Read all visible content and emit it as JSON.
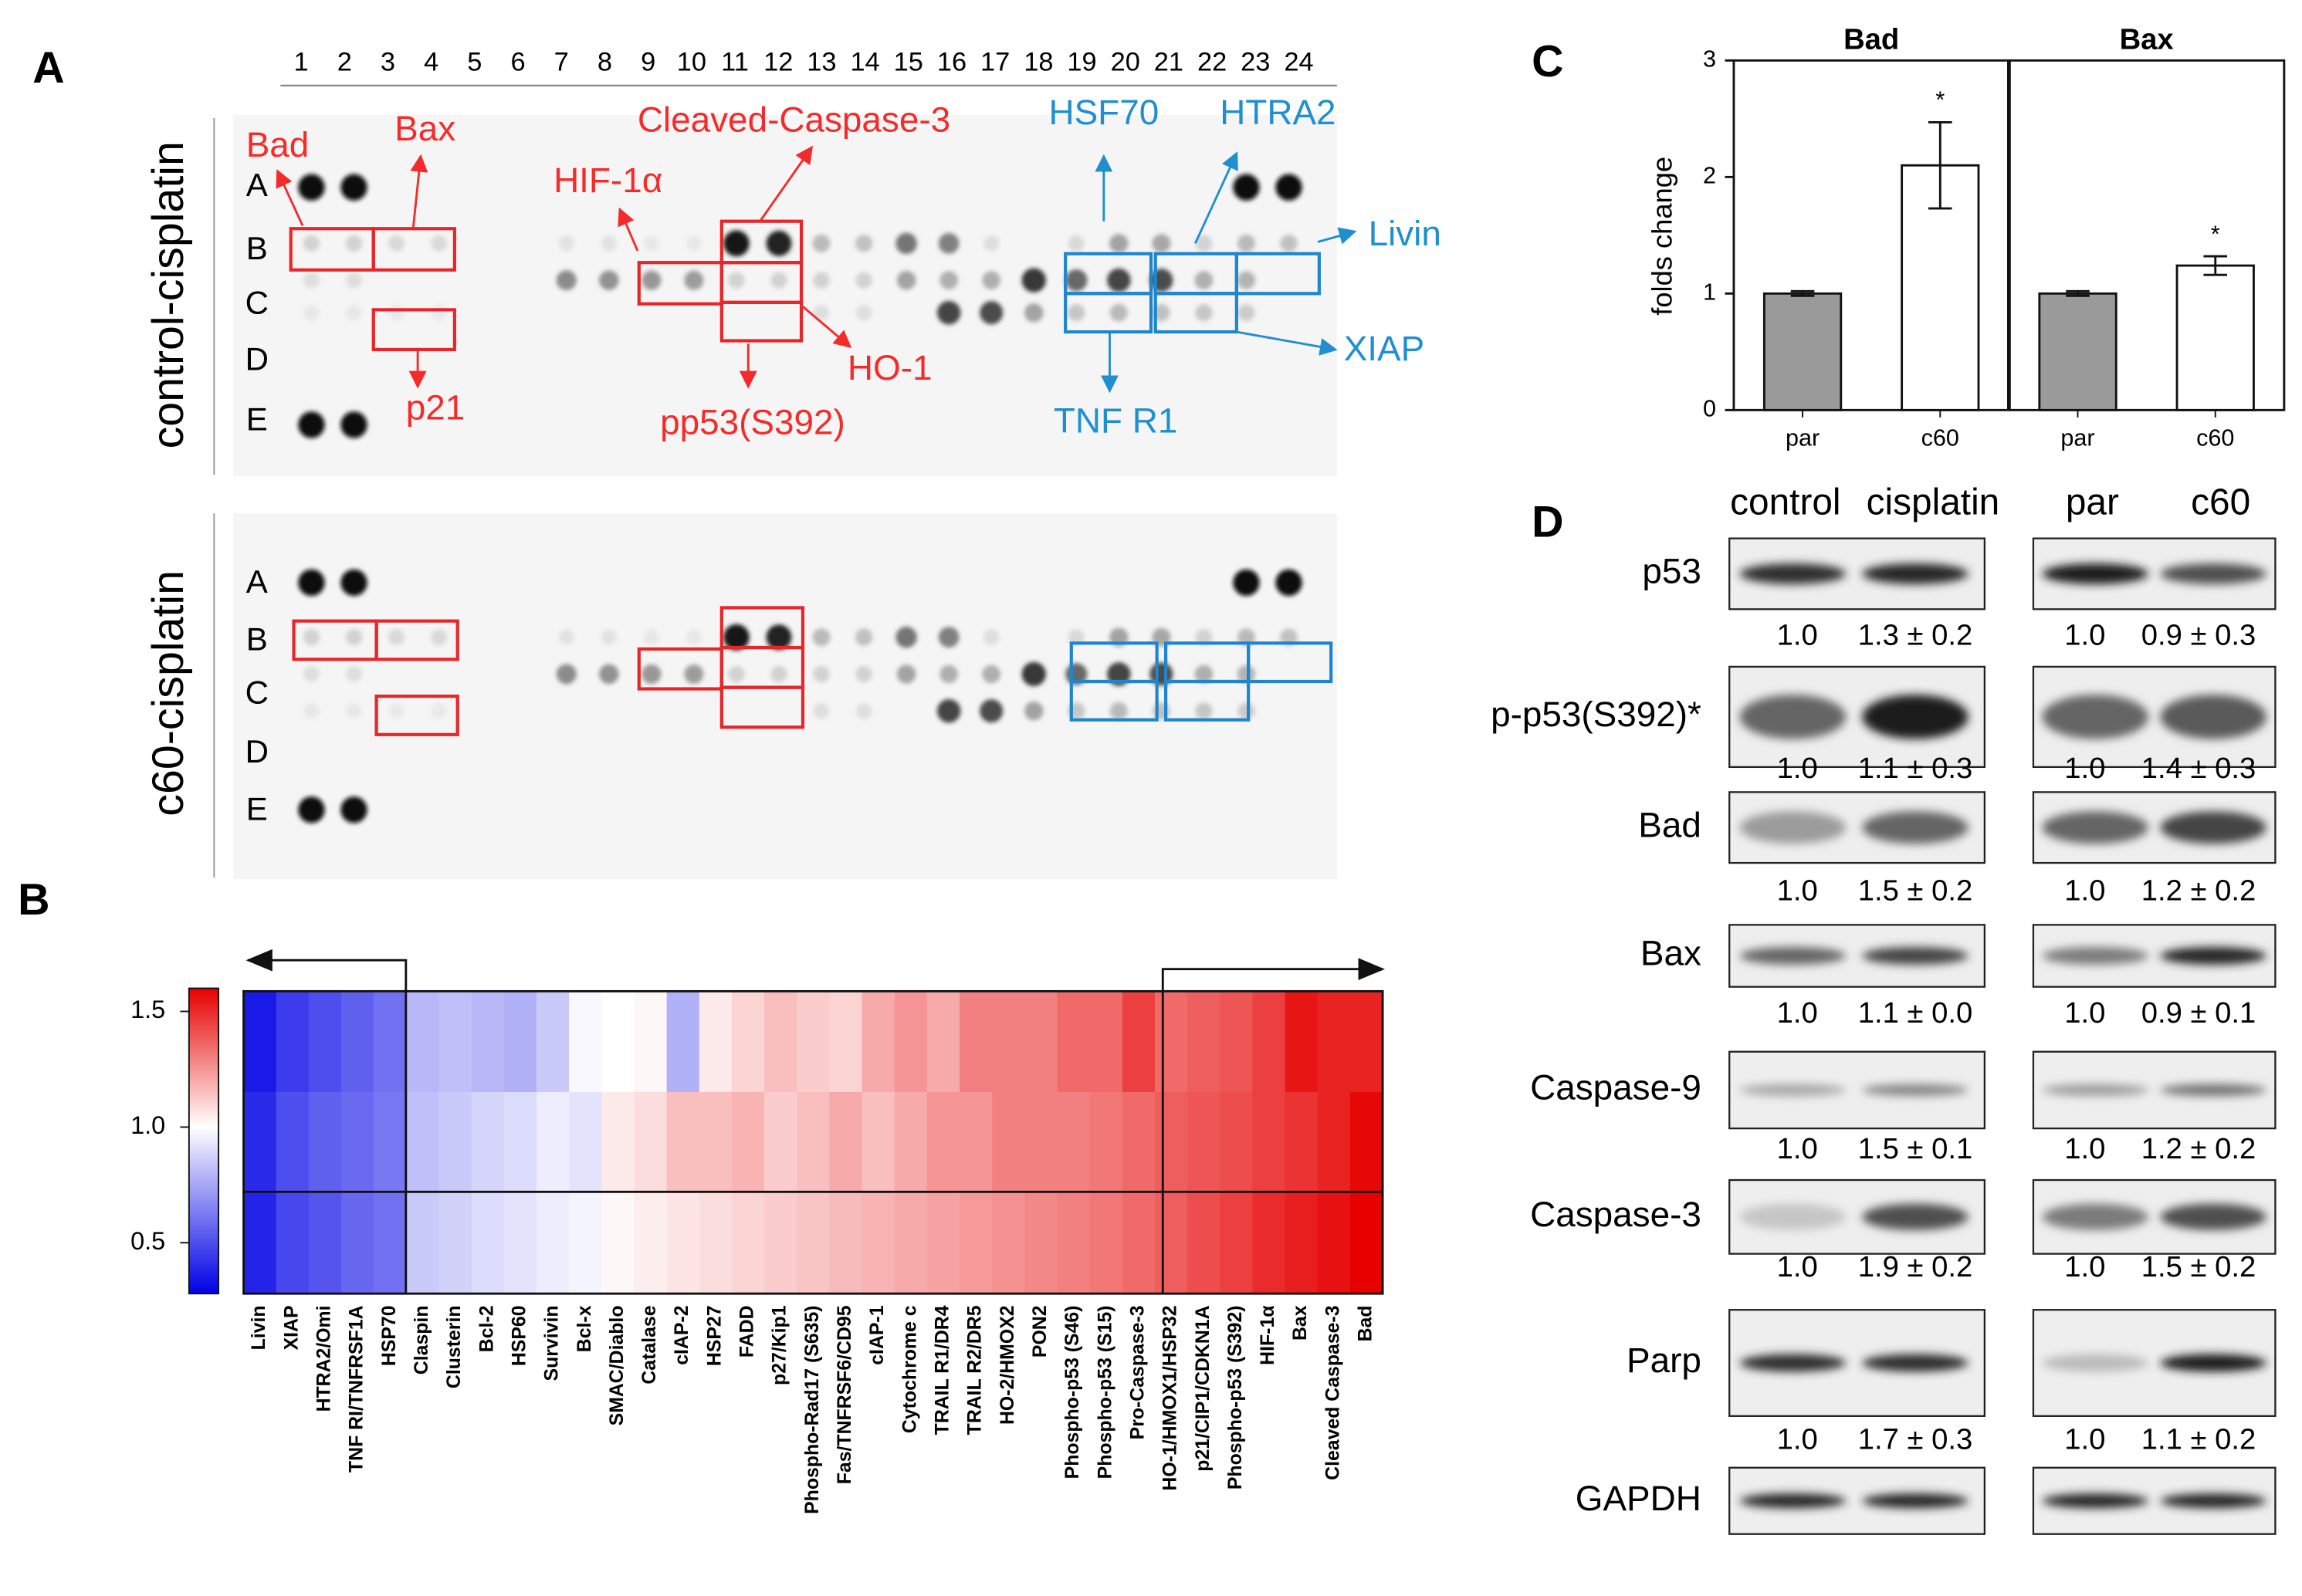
{
  "panel_labels": [
    "A",
    "B",
    "C",
    "D"
  ],
  "dot_blot": {
    "column_numbers": [
      1,
      2,
      3,
      4,
      5,
      6,
      7,
      8,
      9,
      10,
      11,
      12,
      13,
      14,
      15,
      16,
      17,
      18,
      19,
      20,
      21,
      22,
      23,
      24
    ],
    "row_letters": [
      "A",
      "B",
      "C",
      "D",
      "E"
    ],
    "panels": [
      "control-cisplatin",
      "c60-cisplatin"
    ],
    "annotations": {
      "bad": "Bad",
      "bax": "Bax",
      "p21": "p21",
      "hif": "HIF-1α",
      "cleaved": "Cleaved-Caspase-3",
      "ho1": "HO-1",
      "pp53": "pp53(S392)",
      "hsf70": "HSF70",
      "htra2": "HTRA2",
      "livin": "Livin",
      "xiap": "XIAP",
      "tnfr1": "TNF R1"
    }
  },
  "heatmap": {
    "columns": [
      "Livin",
      "XIAP",
      "HTRA2/Omi",
      "TNF RI/TNFRSF1A",
      "HSP70",
      "Claspin",
      "Clusterin",
      "Bcl-2",
      "HSP60",
      "Survivin",
      "Bcl-x",
      "SMAC/Diablo",
      "Catalase",
      "cIAP-2",
      "HSP27",
      "FADD",
      "p27/Kip1",
      "Phospho-Rad17 (S635)",
      "Fas/TNFRSF6/CD95",
      "cIAP-1",
      "Cytochrome c",
      "TRAIL R1/DR4",
      "TRAIL R2/DR5",
      "HO-2/HMOX2",
      "PON2",
      "Phospho-p53 (S46)",
      "Phospho-p53 (S15)",
      "Pro-Caspase-3",
      "HO-1/HMOX1/HSP32",
      "p21/CIP1/CDKN1A",
      "Phospho-p53 (S392)",
      "HIF-1α",
      "Bax",
      "Cleaved Caspase-3",
      "Bad"
    ],
    "rows": [
      [
        0.35,
        0.45,
        0.5,
        0.55,
        0.6,
        0.8,
        0.82,
        0.8,
        0.78,
        0.85,
        0.98,
        1.0,
        1.02,
        0.78,
        1.05,
        1.1,
        1.15,
        1.12,
        1.1,
        1.2,
        1.25,
        1.2,
        1.3,
        1.3,
        1.3,
        1.35,
        1.35,
        1.45,
        1.35,
        1.38,
        1.4,
        1.45,
        1.55,
        1.52,
        1.52
      ],
      [
        0.4,
        0.5,
        0.55,
        0.58,
        0.62,
        0.82,
        0.85,
        0.88,
        0.9,
        0.95,
        0.92,
        1.05,
        1.08,
        1.15,
        1.15,
        1.18,
        1.12,
        1.15,
        1.2,
        1.15,
        1.2,
        1.25,
        1.25,
        1.3,
        1.3,
        1.3,
        1.32,
        1.35,
        1.38,
        1.4,
        1.42,
        1.45,
        1.48,
        1.52,
        1.58
      ],
      [
        0.38,
        0.48,
        0.52,
        0.57,
        0.6,
        0.85,
        0.87,
        0.9,
        0.92,
        0.95,
        0.97,
        1.02,
        1.04,
        1.06,
        1.08,
        1.1,
        1.12,
        1.14,
        1.16,
        1.18,
        1.2,
        1.22,
        1.24,
        1.26,
        1.28,
        1.3,
        1.32,
        1.35,
        1.38,
        1.42,
        1.45,
        1.5,
        1.53,
        1.56,
        1.6
      ]
    ],
    "colorbar": {
      "range": [
        0.28,
        1.6
      ],
      "ticks": [
        0.5,
        {
          "value": 1,
          "label": "1.0"
        },
        1.5
      ]
    }
  },
  "chart_data": {
    "type": "bar",
    "ylabel": "folds change",
    "ylim": [
      0,
      3
    ],
    "yticks": [
      0,
      1,
      2,
      3
    ],
    "colors": [
      "#9a9a9a",
      "#ffffff"
    ],
    "panels": [
      {
        "title": "Bad",
        "categories": [
          "par",
          "c60"
        ],
        "values": [
          1.0,
          2.1
        ],
        "errors": [
          0.02,
          0.37
        ],
        "annotation": "*"
      },
      {
        "title": "Bax",
        "categories": [
          "par",
          "c60"
        ],
        "values": [
          1.0,
          1.24
        ],
        "errors": [
          0.02,
          0.08
        ],
        "annotation": "*"
      }
    ]
  },
  "western": {
    "headers": [
      "control",
      "cisplatin",
      "par",
      "c60"
    ],
    "rows": [
      {
        "label": "p53",
        "left": [
          "1.0",
          "1.3 ± 0.2"
        ],
        "right": [
          "1.0",
          "0.9 ± 0.3"
        ]
      },
      {
        "label": "p-p53(S392)*",
        "left": [
          "1.0",
          "1.1 ± 0.3"
        ],
        "right": [
          "1.0",
          "1.4 ± 0.3"
        ]
      },
      {
        "label": "Bad",
        "left": [
          "1.0",
          "1.5 ± 0.2"
        ],
        "right": [
          "1.0",
          "1.2 ± 0.2"
        ]
      },
      {
        "label": "Bax",
        "left": [
          "1.0",
          "1.1 ± 0.0"
        ],
        "right": [
          "1.0",
          "0.9 ± 0.1"
        ]
      },
      {
        "label": "Caspase-9",
        "left": [
          "1.0",
          "1.5 ± 0.1"
        ],
        "right": [
          "1.0",
          "1.2 ± 0.2"
        ]
      },
      {
        "label": "Caspase-3",
        "left": [
          "1.0",
          "1.9 ± 0.2"
        ],
        "right": [
          "1.0",
          "1.5 ± 0.2"
        ]
      },
      {
        "label": "Parp",
        "left": [
          "1.0",
          "1.7 ± 0.3"
        ],
        "right": [
          "1.0",
          "1.1 ± 0.2"
        ]
      },
      {
        "label": "GAPDH"
      }
    ]
  }
}
